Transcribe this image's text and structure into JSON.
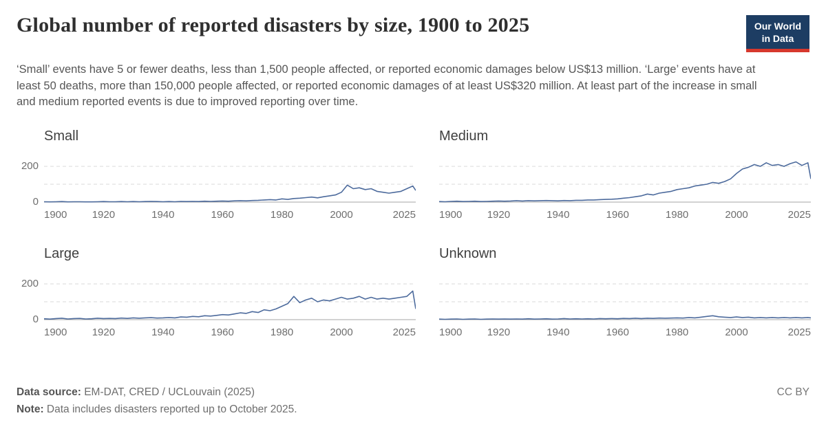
{
  "header": {
    "title": "Global number of reported disasters by size, 1900 to 2025",
    "logo": {
      "line1": "Our World",
      "line2": "in Data"
    },
    "subtitle": "‘Small’ events have 5 or fewer deaths, less than 1,500 people affected, or reported economic damages below US$13 million. ‘Large’ events have at least 50 deaths, more than 150,000 people affected, or reported economic damages of at least US$320 million. At least part of the increase in small and medium reported events is due to improved reporting over time."
  },
  "footer": {
    "data_source_label": "Data source:",
    "data_source": " EM-DAT, CRED / UCLouvain (2025)",
    "license": "CC BY",
    "note_label": "Note:",
    "note": " Data includes disasters reported up to October 2025."
  },
  "colors": {
    "navy": "#1d3d63",
    "red": "#d7382d",
    "line": "#4C6A9C"
  },
  "chart_data": {
    "type": "line",
    "title": "Global number of reported disasters by size, 1900 to 2025",
    "x_range": [
      1900,
      2025
    ],
    "x_ticks": [
      1900,
      1920,
      1940,
      1960,
      1980,
      2000,
      2025
    ],
    "y_range": [
      0,
      250
    ],
    "y_ticks_labeled": [
      0,
      200
    ],
    "y_gridlines": [
      100,
      200
    ],
    "grid": "dashed horizontal at 100 and 200, solid baseline at 0",
    "legend": "none (facet titles above each panel)",
    "line_color": "#4C6A9C",
    "years": [
      1900,
      1902,
      1904,
      1906,
      1908,
      1910,
      1912,
      1914,
      1916,
      1918,
      1920,
      1922,
      1924,
      1926,
      1928,
      1930,
      1932,
      1934,
      1936,
      1938,
      1940,
      1942,
      1944,
      1946,
      1948,
      1950,
      1952,
      1954,
      1956,
      1958,
      1960,
      1962,
      1964,
      1966,
      1968,
      1970,
      1972,
      1974,
      1976,
      1978,
      1980,
      1982,
      1984,
      1986,
      1988,
      1990,
      1992,
      1994,
      1996,
      1998,
      2000,
      2002,
      2004,
      2006,
      2008,
      2010,
      2012,
      2014,
      2016,
      2018,
      2020,
      2022,
      2024,
      2025
    ],
    "charts": [
      {
        "title": "Small",
        "show_y_labels": true,
        "values": [
          2,
          1,
          2,
          3,
          1,
          2,
          2,
          1,
          1,
          2,
          3,
          2,
          2,
          3,
          2,
          3,
          2,
          3,
          4,
          3,
          2,
          3,
          2,
          4,
          3,
          4,
          3,
          5,
          4,
          5,
          6,
          5,
          7,
          8,
          7,
          9,
          10,
          12,
          14,
          12,
          18,
          15,
          20,
          22,
          25,
          28,
          24,
          30,
          35,
          40,
          55,
          95,
          75,
          80,
          70,
          75,
          60,
          55,
          50,
          55,
          60,
          75,
          90,
          65
        ]
      },
      {
        "title": "Medium",
        "show_y_labels": false,
        "values": [
          3,
          2,
          4,
          5,
          3,
          4,
          5,
          3,
          4,
          5,
          6,
          5,
          6,
          8,
          6,
          8,
          7,
          8,
          9,
          8,
          7,
          9,
          8,
          10,
          10,
          12,
          12,
          14,
          15,
          16,
          18,
          22,
          25,
          30,
          35,
          45,
          40,
          50,
          55,
          60,
          70,
          75,
          80,
          90,
          95,
          100,
          110,
          105,
          115,
          130,
          160,
          185,
          195,
          210,
          200,
          220,
          205,
          210,
          200,
          215,
          225,
          205,
          220,
          130
        ]
      },
      {
        "title": "Large",
        "show_y_labels": true,
        "values": [
          5,
          3,
          6,
          8,
          4,
          6,
          7,
          4,
          5,
          8,
          6,
          7,
          6,
          9,
          7,
          10,
          8,
          10,
          11,
          9,
          10,
          12,
          10,
          15,
          14,
          18,
          16,
          22,
          20,
          24,
          28,
          26,
          32,
          38,
          35,
          45,
          40,
          55,
          50,
          60,
          75,
          90,
          130,
          95,
          110,
          120,
          100,
          110,
          105,
          115,
          125,
          115,
          120,
          130,
          115,
          125,
          115,
          120,
          115,
          120,
          125,
          130,
          160,
          60
        ]
      },
      {
        "title": "Unknown",
        "show_y_labels": false,
        "values": [
          3,
          2,
          3,
          4,
          2,
          3,
          4,
          2,
          3,
          4,
          3,
          4,
          3,
          4,
          3,
          5,
          3,
          4,
          5,
          3,
          4,
          6,
          4,
          5,
          4,
          5,
          4,
          6,
          5,
          6,
          5,
          7,
          6,
          8,
          6,
          8,
          7,
          9,
          8,
          9,
          10,
          9,
          12,
          10,
          14,
          18,
          22,
          16,
          14,
          12,
          15,
          12,
          14,
          10,
          12,
          10,
          12,
          10,
          12,
          10,
          12,
          10,
          12,
          10
        ]
      }
    ]
  }
}
